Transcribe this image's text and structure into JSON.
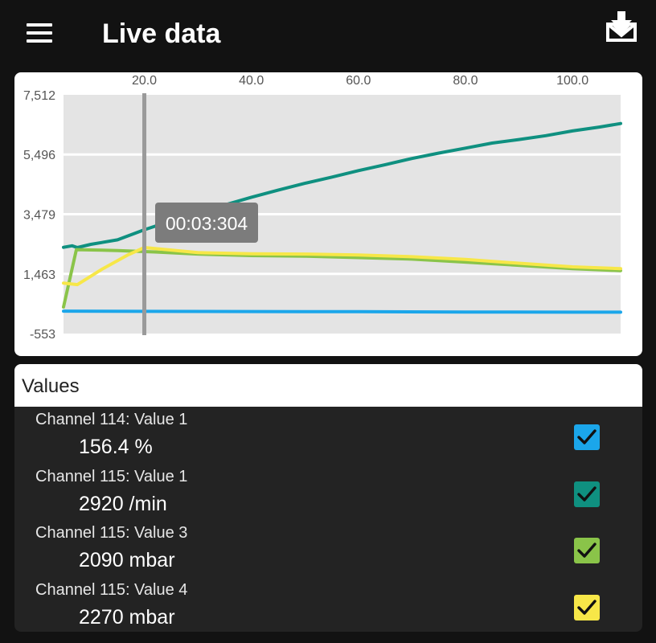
{
  "header": {
    "title": "Live data",
    "menu_icon": "hamburger-menu-icon",
    "export_icon": "download-to-tray-icon"
  },
  "chart_data": {
    "type": "line",
    "x_ticks": [
      "20.0",
      "40.0",
      "60.0",
      "80.0",
      "100.0"
    ],
    "y_ticks": [
      "7,512",
      "5,496",
      "3,479",
      "1,463",
      "-553"
    ],
    "xlim": [
      4.9,
      109
    ],
    "ylim": [
      -553,
      7512
    ],
    "grid": true,
    "cursor": {
      "x": 20,
      "label": "00:03:304"
    },
    "series": [
      {
        "name": "Channel 114: Value 1",
        "color": "#1ba6ea",
        "points": [
          [
            4.9,
            204
          ],
          [
            20,
            196
          ],
          [
            40,
            192
          ],
          [
            60,
            186
          ],
          [
            80,
            176
          ],
          [
            100,
            170
          ],
          [
            109,
            168
          ]
        ]
      },
      {
        "name": "Channel 115: Value 1",
        "color": "#0f9080",
        "points": [
          [
            4.9,
            2362
          ],
          [
            6.5,
            2412
          ],
          [
            7.5,
            2352
          ],
          [
            10,
            2462
          ],
          [
            15,
            2612
          ],
          [
            20,
            2952
          ],
          [
            25,
            3252
          ],
          [
            30,
            3502
          ],
          [
            35,
            3792
          ],
          [
            40,
            4052
          ],
          [
            45,
            4292
          ],
          [
            50,
            4522
          ],
          [
            55,
            4732
          ],
          [
            60,
            4952
          ],
          [
            65,
            5152
          ],
          [
            70,
            5362
          ],
          [
            75,
            5542
          ],
          [
            80,
            5712
          ],
          [
            85,
            5882
          ],
          [
            90,
            6002
          ],
          [
            95,
            6132
          ],
          [
            100,
            6292
          ],
          [
            105,
            6422
          ],
          [
            109,
            6542
          ]
        ]
      },
      {
        "name": "Channel 115: Value 3",
        "color": "#8ac449",
        "points": [
          [
            4.9,
            342
          ],
          [
            7.3,
            2282
          ],
          [
            15,
            2252
          ],
          [
            22,
            2202
          ],
          [
            30,
            2132
          ],
          [
            40,
            2082
          ],
          [
            50,
            2062
          ],
          [
            60,
            2012
          ],
          [
            70,
            1962
          ],
          [
            80,
            1862
          ],
          [
            90,
            1752
          ],
          [
            100,
            1642
          ],
          [
            109,
            1572
          ]
        ]
      },
      {
        "name": "Channel 115: Value 4",
        "color": "#f7e748",
        "points": [
          [
            4.9,
            1152
          ],
          [
            7.5,
            1102
          ],
          [
            12,
            1612
          ],
          [
            17,
            2112
          ],
          [
            20,
            2352
          ],
          [
            23,
            2302
          ],
          [
            30,
            2182
          ],
          [
            40,
            2142
          ],
          [
            50,
            2132
          ],
          [
            60,
            2102
          ],
          [
            70,
            2042
          ],
          [
            80,
            1952
          ],
          [
            90,
            1822
          ],
          [
            100,
            1702
          ],
          [
            109,
            1642
          ]
        ]
      }
    ]
  },
  "values": {
    "title": "Values",
    "items": [
      {
        "label": "Channel 114: Value 1",
        "reading": "156.4 %",
        "color": "#1ba6ea",
        "checked": true
      },
      {
        "label": "Channel 115: Value 1",
        "reading": "2920 /min",
        "color": "#0f9080",
        "checked": true
      },
      {
        "label": "Channel 115: Value 3",
        "reading": "2090 mbar",
        "color": "#8ac449",
        "checked": true
      },
      {
        "label": "Channel 115: Value 4",
        "reading": "2270 mbar",
        "color": "#f7e748",
        "checked": true
      }
    ]
  }
}
